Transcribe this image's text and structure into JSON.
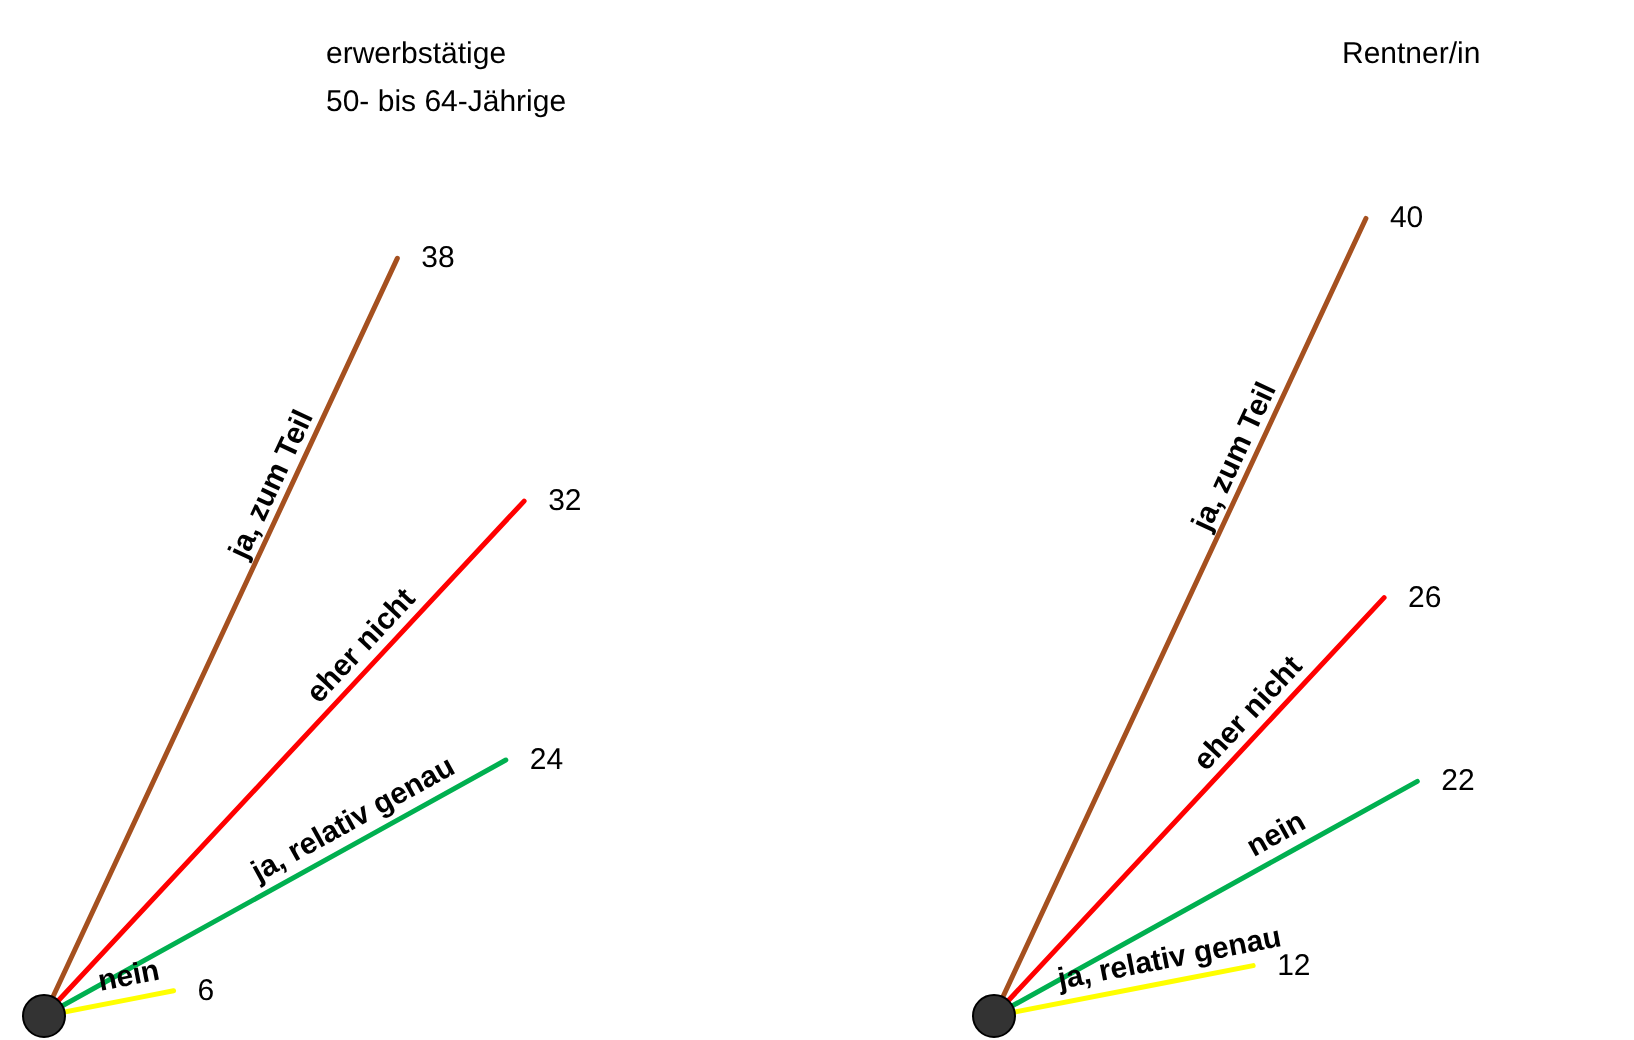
{
  "chart_data": [
    {
      "type": "other",
      "title": "erwerbstätige\n50- bis 64-Jährige",
      "categories": [
        "ja, zum Teil",
        "eher nicht",
        "ja, relativ genau",
        "nein"
      ],
      "values": [
        38,
        32,
        24,
        6
      ],
      "colors": [
        "#a5501f",
        "#ff0000",
        "#00b050",
        "#ffff00"
      ],
      "data_labels": true
    },
    {
      "type": "other",
      "title": "Rentner/in",
      "categories": [
        "ja, zum Teil",
        "eher nicht",
        "nein",
        "ja, relativ genau"
      ],
      "values": [
        40,
        26,
        22,
        12
      ],
      "colors": [
        "#a5501f",
        "#ff0000",
        "#00b050",
        "#ffff00"
      ],
      "data_labels": true
    }
  ]
}
